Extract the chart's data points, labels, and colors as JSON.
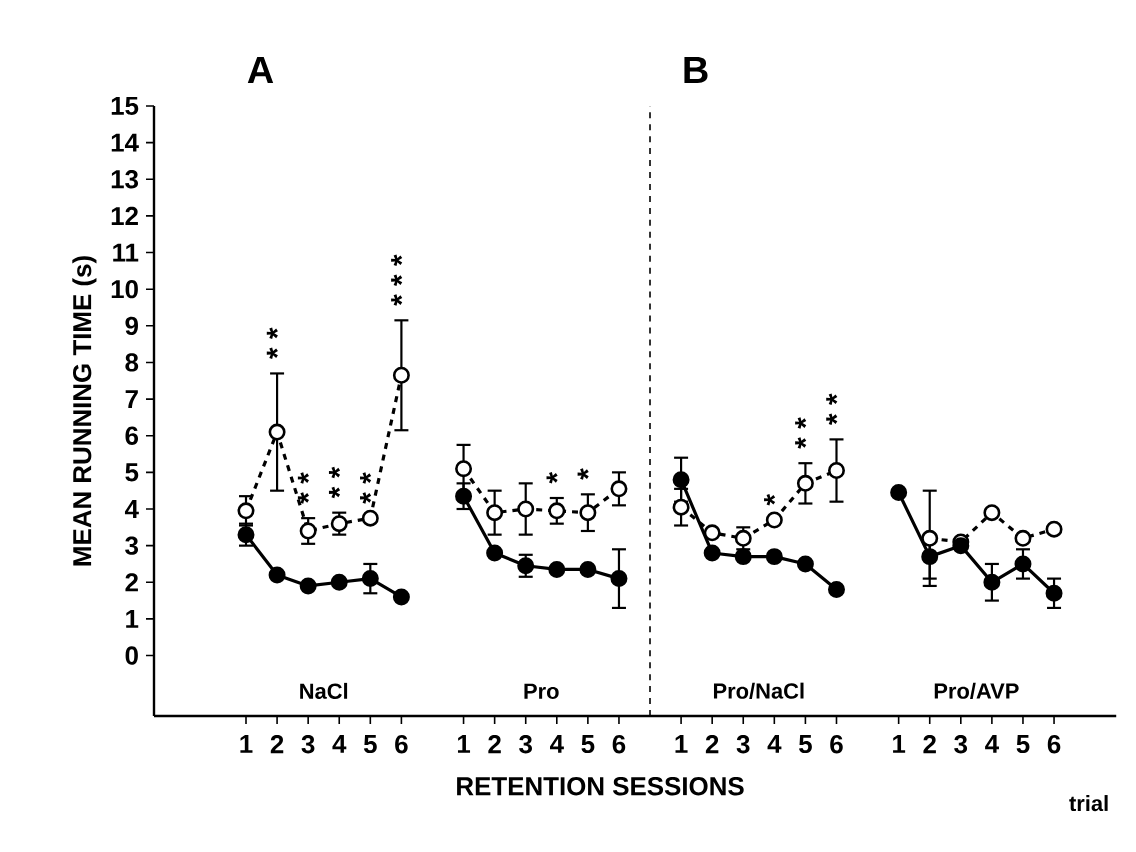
{
  "chart_data": [
    {
      "type": "line",
      "title": "A",
      "ylabel": "MEAN RUNNING TIME (s)",
      "xlabel": "RETENTION SESSIONS",
      "annotations": [
        "NaCl",
        "Pro"
      ],
      "categories": [
        "1",
        "2",
        "3",
        "4",
        "5",
        "6",
        null,
        "1",
        "2",
        "3",
        "4",
        "5",
        "6"
      ],
      "ylim": [
        -1.65,
        15
      ],
      "yticks": [
        0,
        1,
        2,
        3,
        4,
        5,
        6,
        7,
        8,
        9,
        10,
        11,
        12,
        13,
        14,
        15
      ],
      "marker": "circle",
      "series": [
        {
          "color": "#000000",
          "line_style": "solid",
          "values": [
            3.3,
            2.2,
            1.9,
            2.0,
            2.1,
            1.6,
            null,
            4.35,
            2.8,
            2.45,
            2.35,
            2.35,
            2.1
          ],
          "errors": [
            0.3,
            null,
            null,
            null,
            0.4,
            null,
            null,
            0.35,
            null,
            0.3,
            null,
            null,
            0.8
          ]
        },
        {
          "color": "#000000",
          "line_style": "dashed",
          "values": [
            3.95,
            6.1,
            3.4,
            3.6,
            3.75,
            7.65,
            null,
            5.1,
            3.9,
            4.0,
            3.95,
            3.9,
            4.55
          ],
          "errors": [
            0.4,
            1.6,
            0.35,
            0.3,
            null,
            1.5,
            null,
            0.65,
            0.6,
            0.7,
            0.35,
            0.5,
            0.45
          ],
          "value_labels": [
            null,
            "* *",
            "* *",
            "* *",
            "* *",
            "* * *",
            null,
            null,
            null,
            null,
            "*",
            "*",
            null
          ]
        }
      ]
    },
    {
      "type": "line",
      "title": "B",
      "annotations": [
        "Pro/NaCl",
        "Pro/AVP",
        "trial"
      ],
      "categories": [
        "1",
        "2",
        "3",
        "4",
        "5",
        "6",
        null,
        "1",
        "2",
        "3",
        "4",
        "5",
        "6"
      ],
      "ylim": [
        -1.65,
        15
      ],
      "tick_labels": "x",
      "marker": "circle",
      "series": [
        {
          "color": "#000000",
          "line_style": "solid",
          "values": [
            4.8,
            2.8,
            2.7,
            2.7,
            2.5,
            1.8,
            null,
            4.45,
            2.7,
            3.0,
            2.0,
            2.5,
            1.7
          ],
          "errors": [
            0.6,
            null,
            null,
            null,
            null,
            null,
            null,
            null,
            0.6,
            null,
            0.5,
            0.4,
            0.4
          ]
        },
        {
          "color": "#000000",
          "line_style": "dashed",
          "values": [
            4.05,
            3.35,
            3.2,
            3.7,
            4.7,
            5.05,
            null,
            null,
            3.2,
            3.1,
            3.9,
            3.2,
            3.45
          ],
          "errors": [
            0.5,
            null,
            0.3,
            null,
            0.55,
            0.85,
            null,
            null,
            1.3,
            null,
            null,
            null,
            null
          ],
          "value_labels": [
            null,
            null,
            null,
            "*",
            "* *",
            "* *",
            null,
            null,
            null,
            null,
            null,
            null,
            null
          ]
        }
      ]
    }
  ]
}
